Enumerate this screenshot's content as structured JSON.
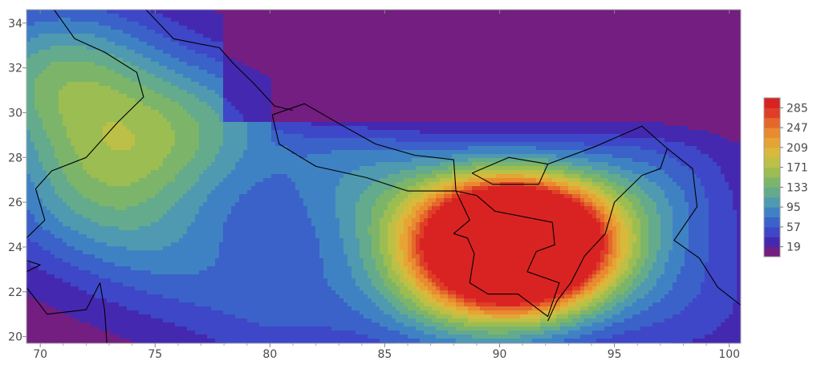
{
  "chart_data": {
    "type": "heatmap",
    "subtype": "filled-contour-map",
    "title": "",
    "xlabel": "",
    "ylabel": "",
    "xlim": [
      69.4,
      100.5
    ],
    "ylim": [
      19.7,
      34.6
    ],
    "x_ticks": [
      70,
      75,
      80,
      85,
      90,
      95,
      100
    ],
    "y_ticks": [
      20,
      22,
      24,
      26,
      28,
      30,
      32,
      34
    ],
    "x_tick_labels": [
      "70",
      "75",
      "80",
      "85",
      "90",
      "95",
      "100"
    ],
    "y_tick_labels": [
      "20",
      "22",
      "24",
      "26",
      "28",
      "30",
      "32",
      "34"
    ],
    "grid": false,
    "legend_position": "right",
    "colorbar": {
      "levels": [
        0,
        19,
        38,
        57,
        76,
        95,
        114,
        133,
        152,
        171,
        190,
        209,
        228,
        247,
        266,
        285,
        304
      ],
      "tick_values": [
        19,
        57,
        95,
        133,
        171,
        209,
        247,
        285
      ],
      "tick_labels": [
        "19",
        "57",
        "95",
        "133",
        "171",
        "209",
        "247",
        "285"
      ],
      "colors": [
        "#731e80",
        "#4429b0",
        "#3e47c8",
        "#3b62c8",
        "#3f82c4",
        "#4f9ab0",
        "#63ab8c",
        "#7cb56a",
        "#9cbd52",
        "#bcc046",
        "#d8b93c",
        "#e6a435",
        "#e98a30",
        "#e5682b",
        "#df3e27",
        "#d92322"
      ]
    },
    "field": {
      "description_values_in_data_units": true,
      "peaks": [
        {
          "lon": 90.1,
          "lat": 24.6,
          "value": 300
        },
        {
          "lon": 91.8,
          "lat": 23.8,
          "value": 240
        },
        {
          "lon": 88.6,
          "lat": 22.8,
          "value": 150
        },
        {
          "lon": 70.9,
          "lat": 31.6,
          "value": 120
        },
        {
          "lon": 73.8,
          "lat": 28.2,
          "value": 75
        },
        {
          "lon": 77.5,
          "lat": 29.6,
          "value": 70
        },
        {
          "lon": 75.6,
          "lat": 23.8,
          "value": 55
        },
        {
          "lon": 80.5,
          "lat": 21.2,
          "value": 45
        },
        {
          "lon": 84.2,
          "lat": 26.8,
          "value": 75
        },
        {
          "lon": 96.0,
          "lat": 26.2,
          "value": 75
        },
        {
          "lon": 97.8,
          "lat": 21.5,
          "value": 40
        },
        {
          "lon": 71.5,
          "lat": 26.0,
          "value": 60
        }
      ]
    }
  }
}
